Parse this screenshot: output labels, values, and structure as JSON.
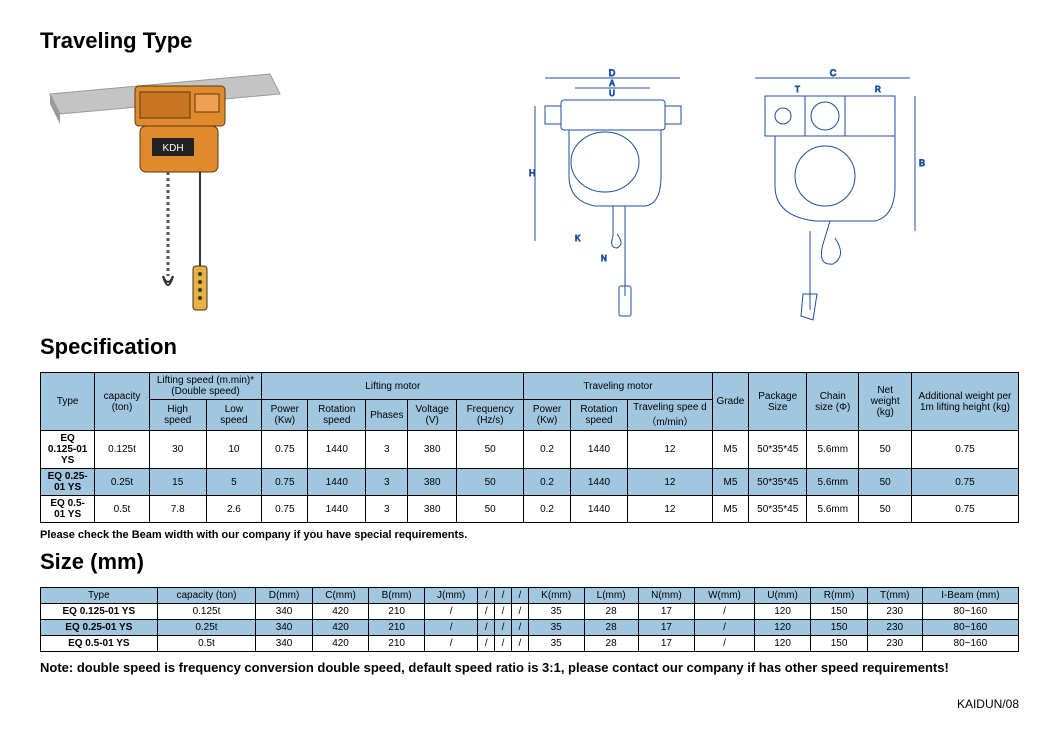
{
  "titles": {
    "traveling": "Traveling Type",
    "specification": "Specification",
    "size": "Size (mm)"
  },
  "spec_headers": {
    "type": "Type",
    "capacity": "capacity (ton)",
    "lifting_speed_group": "Lifting speed (m.min)* (Double speed)",
    "high_speed": "High speed",
    "low_speed": "Low speed",
    "lifting_motor_group": "Lifting motor",
    "power_kw": "Power (Kw)",
    "rotation_speed": "Rotation speed",
    "phases": "Phases",
    "voltage": "Voltage (V)",
    "frequency": "Frequency (Hz/s)",
    "traveling_motor_group": "Traveling motor",
    "tm_power": "Power (Kw)",
    "tm_rotation": "Rotation speed",
    "tm_speed": "Traveling spee d（m/min）",
    "grade": "Grade",
    "package_size": "Package Size",
    "chain_size": "Chain size (Φ)",
    "net_weight": "Net weight (kg)",
    "additional": "Additional weight per 1m lifting height (kg)"
  },
  "spec_rows": [
    {
      "type": "EQ  0.125-01 YS",
      "cap": "0.125t",
      "hs": "30",
      "ls": "10",
      "pw": "0.75",
      "rot": "1440",
      "ph": "3",
      "v": "380",
      "f": "50",
      "tpw": "0.2",
      "trot": "1440",
      "tspd": "12",
      "grade": "M5",
      "pkg": "50*35*45",
      "chain": "5.6mm",
      "nw": "50",
      "add": "0.75",
      "hl": false
    },
    {
      "type": "EQ  0.25-01 YS",
      "cap": "0.25t",
      "hs": "15",
      "ls": "5",
      "pw": "0.75",
      "rot": "1440",
      "ph": "3",
      "v": "380",
      "f": "50",
      "tpw": "0.2",
      "trot": "1440",
      "tspd": "12",
      "grade": "M5",
      "pkg": "50*35*45",
      "chain": "5.6mm",
      "nw": "50",
      "add": "0.75",
      "hl": true
    },
    {
      "type": "EQ  0.5-01 YS",
      "cap": "0.5t",
      "hs": "7.8",
      "ls": "2.6",
      "pw": "0.75",
      "rot": "1440",
      "ph": "3",
      "v": "380",
      "f": "50",
      "tpw": "0.2",
      "trot": "1440",
      "tspd": "12",
      "grade": "M5",
      "pkg": "50*35*45",
      "chain": "5.6mm",
      "nw": "50",
      "add": "0.75",
      "hl": false
    }
  ],
  "spec_note": "Please check the Beam width with our company if you have special requirements.",
  "size_headers": {
    "type": "Type",
    "capacity": "capacity (ton)",
    "D": "D(mm)",
    "C": "C(mm)",
    "B": "B(mm)",
    "J": "J(mm)",
    "s1": "/",
    "s2": "/",
    "s3": "/",
    "K": "K(mm)",
    "L": "L(mm)",
    "N": "N(mm)",
    "W": "W(mm)",
    "U": "U(mm)",
    "R": "R(mm)",
    "T": "T(mm)",
    "ibeam": "I-Beam (mm)"
  },
  "size_rows": [
    {
      "type": "EQ  0.125-01 YS",
      "cap": "0.125t",
      "D": "340",
      "C": "420",
      "B": "210",
      "J": "/",
      "s1": "/",
      "s2": "/",
      "s3": "/",
      "K": "35",
      "L": "28",
      "N": "17",
      "W": "/",
      "U": "120",
      "R": "150",
      "T": "230",
      "ib": "80~160",
      "hl": false
    },
    {
      "type": "EQ  0.25-01 YS",
      "cap": "0.25t",
      "D": "340",
      "C": "420",
      "B": "210",
      "J": "/",
      "s1": "/",
      "s2": "/",
      "s3": "/",
      "K": "35",
      "L": "28",
      "N": "17",
      "W": "/",
      "U": "120",
      "R": "150",
      "T": "230",
      "ib": "80~160",
      "hl": true
    },
    {
      "type": "EQ  0.5-01 YS",
      "cap": "0.5t",
      "D": "340",
      "C": "420",
      "B": "210",
      "J": "/",
      "s1": "/",
      "s2": "/",
      "s3": "/",
      "K": "35",
      "L": "28",
      "N": "17",
      "W": "/",
      "U": "120",
      "R": "150",
      "T": "230",
      "ib": "80~160",
      "hl": false
    }
  ],
  "big_note": "Note: double speed is frequency conversion double speed, default speed ratio is 3:1, please contact our company if has other speed requirements!",
  "footer": "KAIDUN/08",
  "colors": {
    "header_bg": "#a0c6e0",
    "hoist_orange": "#e08a2e",
    "beam_gray": "#b8b8b8",
    "diagram_stroke": "#1a4fa0"
  }
}
